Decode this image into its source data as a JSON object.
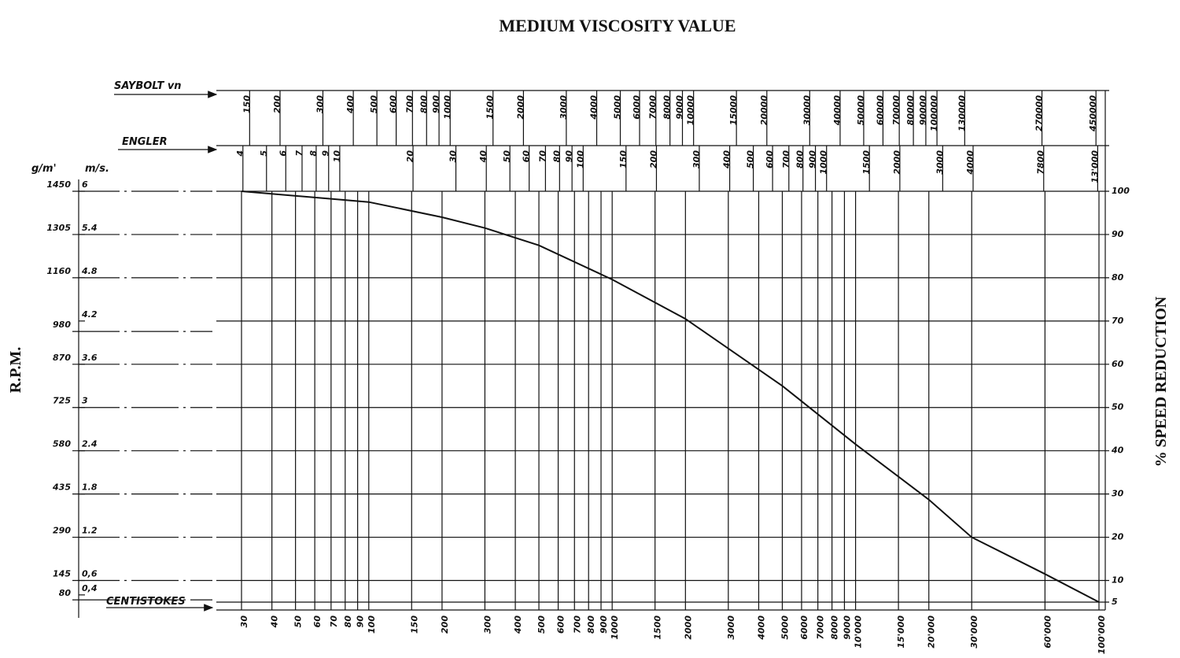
{
  "chart_data": {
    "type": "line",
    "title": "MEDIUM VISCOSITY VALUE",
    "xlabel": "CENTISTOKES",
    "ylabel": "% SPEED REDUCTION",
    "xscale": "log",
    "xlim": [
      30,
      100000
    ],
    "xticks": [
      30,
      40,
      50,
      60,
      70,
      80,
      90,
      100,
      150,
      200,
      300,
      400,
      500,
      600,
      700,
      800,
      900,
      1000,
      1500,
      2000,
      3000,
      4000,
      5000,
      6000,
      7000,
      8000,
      9000,
      {
        "value": 10000,
        "label": "10'000"
      },
      {
        "value": 15000,
        "label": "15'000"
      },
      {
        "value": 20000,
        "label": "20'000"
      },
      {
        "value": 30000,
        "label": "30'000"
      },
      {
        "value": 60000,
        "label": "60'000"
      },
      {
        "value": 100000,
        "label": "100'000"
      }
    ],
    "ylim": [
      5,
      100
    ],
    "yticks": [
      100,
      90,
      80,
      70,
      60,
      50,
      40,
      30,
      20,
      10,
      5
    ],
    "grid": true,
    "color": "#111111",
    "x": [
      30,
      100,
      200,
      300,
      500,
      1000,
      2000,
      5000,
      10000,
      20000,
      30000,
      60000,
      100000
    ],
    "values": [
      100,
      97.5,
      94,
      91.5,
      87.5,
      79.6,
      70.5,
      55,
      41.5,
      28.7,
      20,
      11.5,
      5
    ],
    "saybolt": {
      "label": "SAYBOLT vn",
      "ticks": [
        150,
        200,
        300,
        400,
        500,
        600,
        700,
        800,
        900,
        1000,
        1500,
        2000,
        3000,
        4000,
        5000,
        6000,
        7000,
        8000,
        9000,
        10000,
        15000,
        20000,
        30000,
        40000,
        50000,
        60000,
        70000,
        80000,
        90000,
        100000,
        130000,
        270000,
        450000
      ]
    },
    "engler": {
      "label": "ENGLER",
      "ticks": [
        4,
        5,
        6,
        7,
        8,
        9,
        10,
        20,
        30,
        40,
        50,
        60,
        70,
        80,
        90,
        100,
        150,
        200,
        300,
        400,
        500,
        600,
        700,
        800,
        900,
        1000,
        1500,
        2000,
        3000,
        4000,
        7800,
        {
          "value": 13000,
          "label": "13'000"
        }
      ]
    },
    "rpm_axis": {
      "title": "R.P.M.",
      "label": "g/m'",
      "ticks": [
        1450,
        1305,
        1160,
        980,
        870,
        725,
        580,
        435,
        290,
        145,
        80
      ]
    },
    "speed_axis": {
      "label": "m/s.",
      "ticks": [
        6,
        5.4,
        4.8,
        4.2,
        3.6,
        3,
        2.4,
        1.8,
        1.2,
        {
          "value": 0.6,
          "label": "0,6"
        },
        {
          "value": 0.4,
          "label": "0,4"
        }
      ]
    }
  }
}
